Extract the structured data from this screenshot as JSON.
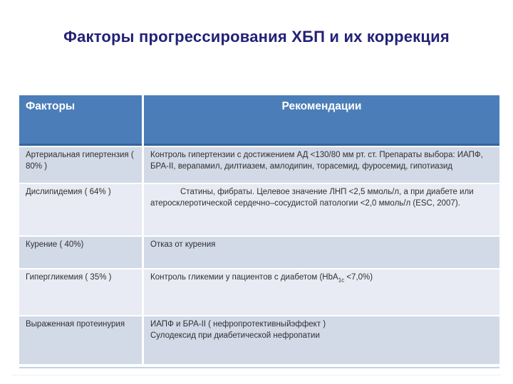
{
  "title": "Факторы прогрессирования ХБП и их коррекция",
  "colors": {
    "title_text": "#222178",
    "header_bg": "#4B7EB9",
    "header_border": "#35649B",
    "header_text": "#FFFFFF",
    "row_band_dark": "#D2D9E7",
    "row_band_light": "#E8EBF3",
    "body_text": "#303030"
  },
  "table": {
    "headers": {
      "factors": "Факторы",
      "recommendations": "Рекомендации"
    },
    "rows": [
      {
        "factor": "Артериальная гипертензия ( 80% )",
        "recommendation": "Контроль гипертензии с достижением АД <130/80 мм рт. ст. Препараты выбора: ИАПФ, БРА-II, верапамил, дилтиазем, амлодипин, торасемид, фуросемид, гипотиазид"
      },
      {
        "factor": "Дислипидемия ( 64% )",
        "recommendation": "Статины, фибраты. Целевое значение ЛНП <2,5 ммоль/л, а при диабете или атеросклеротической сердечно–сосудистой патологии <2,0 ммоль/л (ESC, 2007)."
      },
      {
        "factor": "Курение ( 40%)",
        "recommendation": "Отказ от курения"
      },
      {
        "factor": "Гипергликемия ( 35% )",
        "recommendation_pre": "Контроль гликемии у пациентов с диабетом (HbA",
        "recommendation_sub": "1c",
        "recommendation_post": " <7,0%)"
      },
      {
        "factor": "Выраженная протеинурия",
        "recommendation_line1": "ИАПФ и БРА-II ( нефропротективныйэффект )",
        "recommendation_line2": "Сулодексид при диабетической нефропатии"
      }
    ]
  }
}
